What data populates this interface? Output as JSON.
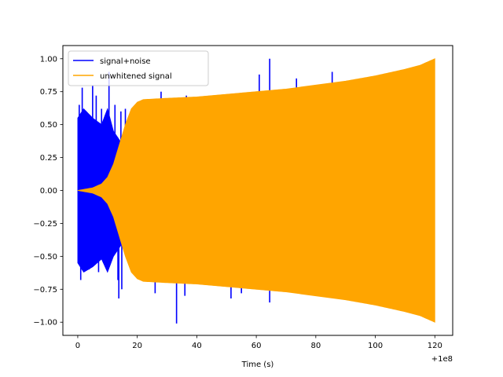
{
  "chart_data": {
    "type": "line",
    "title": "",
    "xlabel": "Time (s)",
    "ylabel": "",
    "x_offset_label": "+1e8",
    "xlim": [
      -5,
      126
    ],
    "ylim": [
      -1.1,
      1.1
    ],
    "x_ticks": [
      0,
      20,
      40,
      60,
      80,
      100,
      120
    ],
    "x_tick_labels": [
      "0",
      "20",
      "40",
      "60",
      "80",
      "100",
      "120"
    ],
    "y_ticks": [
      1.0,
      0.75,
      0.5,
      0.25,
      0.0,
      -0.25,
      -0.5,
      -0.75,
      -1.0
    ],
    "y_tick_labels": [
      "1.00",
      "0.75",
      "0.50",
      "0.25",
      "0.00",
      "−0.25",
      "−0.50",
      "−0.75",
      "−1.00"
    ],
    "grid": false,
    "legend": {
      "position": "upper-left"
    },
    "series": [
      {
        "name": "signal+noise",
        "color": "#0000ff",
        "envelope_upper": [
          [
            0,
            0.55
          ],
          [
            2,
            0.62
          ],
          [
            5,
            0.55
          ],
          [
            8,
            0.5
          ],
          [
            10,
            0.62
          ],
          [
            12,
            0.45
          ],
          [
            15,
            0.35
          ],
          [
            18,
            0.25
          ],
          [
            20,
            0.12
          ]
        ],
        "envelope_lower": [
          [
            0,
            -0.55
          ],
          [
            2,
            -0.62
          ],
          [
            5,
            -0.58
          ],
          [
            8,
            -0.52
          ],
          [
            10,
            -0.62
          ],
          [
            12,
            -0.5
          ],
          [
            15,
            -0.4
          ],
          [
            18,
            -0.28
          ],
          [
            20,
            -0.12
          ]
        ],
        "spikes": [
          [
            0.5,
            0.65
          ],
          [
            1,
            -0.68
          ],
          [
            1.5,
            0.78
          ],
          [
            2,
            -0.5
          ],
          [
            3.8,
            -0.6
          ],
          [
            5,
            0.8
          ],
          [
            6.2,
            0.72
          ],
          [
            7,
            -0.62
          ],
          [
            8,
            0.62
          ],
          [
            9.5,
            0.58
          ],
          [
            10.5,
            0.9
          ],
          [
            11.5,
            -0.45
          ],
          [
            12.5,
            0.65
          ],
          [
            13.5,
            -0.68
          ],
          [
            14.5,
            0.6
          ],
          [
            13.8,
            -0.82
          ],
          [
            14.8,
            -0.75
          ],
          [
            16,
            0.62
          ],
          [
            17.5,
            0.48
          ],
          [
            18.5,
            0.6
          ],
          [
            23,
            0.62
          ],
          [
            26,
            -0.78
          ],
          [
            28,
            0.75
          ],
          [
            33.2,
            -1.01
          ],
          [
            36,
            -0.8
          ],
          [
            36.5,
            0.72
          ],
          [
            40,
            0.7
          ],
          [
            51.5,
            -0.82
          ],
          [
            55,
            -0.78
          ],
          [
            61,
            0.88
          ],
          [
            64.5,
            1.0
          ],
          [
            64.5,
            -0.85
          ],
          [
            73,
            -0.6
          ],
          [
            73.5,
            0.85
          ],
          [
            85.5,
            0.9
          ]
        ]
      },
      {
        "name": "unwhitened signal",
        "color": "#ffa500",
        "envelope_upper": [
          [
            0,
            0.0
          ],
          [
            5,
            0.02
          ],
          [
            8,
            0.05
          ],
          [
            10,
            0.1
          ],
          [
            12,
            0.2
          ],
          [
            14,
            0.35
          ],
          [
            16,
            0.5
          ],
          [
            18,
            0.62
          ],
          [
            20,
            0.67
          ],
          [
            22,
            0.69
          ],
          [
            30,
            0.7
          ],
          [
            40,
            0.71
          ],
          [
            50,
            0.73
          ],
          [
            60,
            0.75
          ],
          [
            70,
            0.77
          ],
          [
            80,
            0.8
          ],
          [
            90,
            0.83
          ],
          [
            100,
            0.87
          ],
          [
            110,
            0.92
          ],
          [
            115,
            0.95
          ],
          [
            120,
            1.0
          ]
        ],
        "envelope_lower": [
          [
            0,
            0.0
          ],
          [
            5,
            -0.02
          ],
          [
            8,
            -0.05
          ],
          [
            10,
            -0.1
          ],
          [
            12,
            -0.2
          ],
          [
            14,
            -0.35
          ],
          [
            16,
            -0.5
          ],
          [
            18,
            -0.62
          ],
          [
            20,
            -0.67
          ],
          [
            22,
            -0.69
          ],
          [
            30,
            -0.7
          ],
          [
            40,
            -0.71
          ],
          [
            50,
            -0.73
          ],
          [
            60,
            -0.75
          ],
          [
            70,
            -0.77
          ],
          [
            80,
            -0.8
          ],
          [
            90,
            -0.83
          ],
          [
            100,
            -0.87
          ],
          [
            110,
            -0.92
          ],
          [
            115,
            -0.95
          ],
          [
            120,
            -1.0
          ]
        ]
      }
    ]
  }
}
